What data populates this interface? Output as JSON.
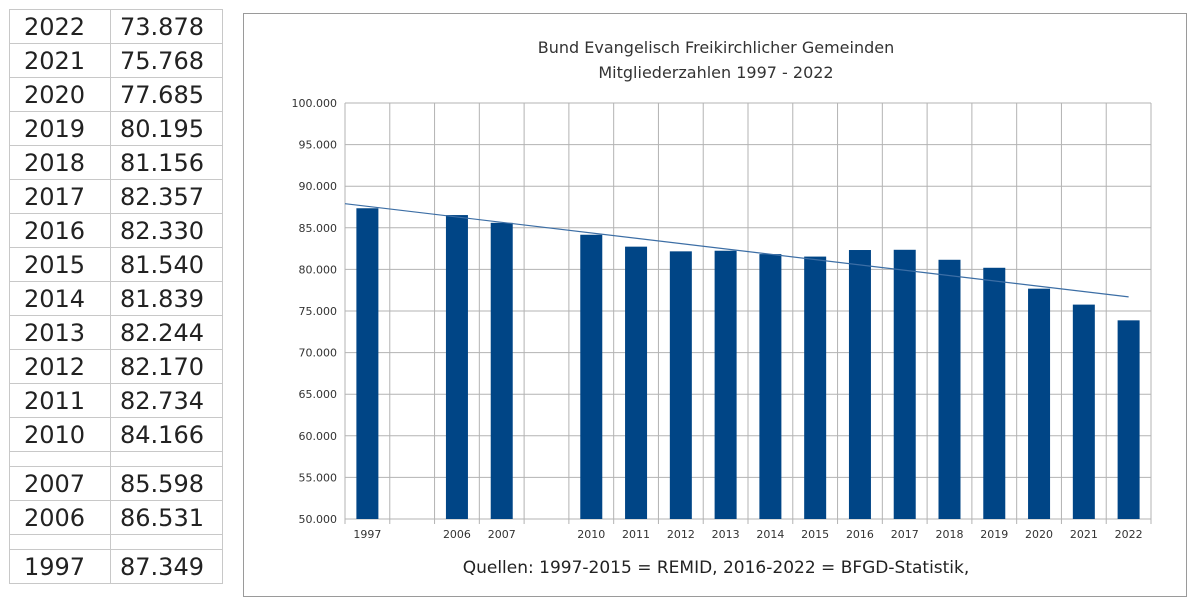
{
  "table": {
    "rows": [
      {
        "year": "2022",
        "value": "73.878"
      },
      {
        "year": "2021",
        "value": "75.768"
      },
      {
        "year": "2020",
        "value": "77.685"
      },
      {
        "year": "2019",
        "value": "80.195"
      },
      {
        "year": "2018",
        "value": "81.156"
      },
      {
        "year": "2017",
        "value": "82.357"
      },
      {
        "year": "2016",
        "value": "82.330"
      },
      {
        "year": "2015",
        "value": "81.540"
      },
      {
        "year": "2014",
        "value": "81.839"
      },
      {
        "year": "2013",
        "value": "82.244"
      },
      {
        "year": "2012",
        "value": "82.170"
      },
      {
        "year": "2011",
        "value": "82.734"
      },
      {
        "year": "2010",
        "value": "84.166"
      },
      {
        "year": "",
        "value": ""
      },
      {
        "year": "2007",
        "value": "85.598"
      },
      {
        "year": "2006",
        "value": "86.531"
      },
      {
        "year": "",
        "value": ""
      },
      {
        "year": "1997",
        "value": "87.349"
      }
    ]
  },
  "chart_data": {
    "type": "bar",
    "title": "Bund Evangelisch Freikirchlicher Gemeinden",
    "subtitle": "Mitgliederzahlen 1997 - 2022",
    "categories": [
      "1997",
      "",
      "2006",
      "2007",
      "",
      "2010",
      "2011",
      "2012",
      "2013",
      "2014",
      "2015",
      "2016",
      "2017",
      "2018",
      "2019",
      "2020",
      "2021",
      "2022"
    ],
    "values": [
      87349,
      null,
      86531,
      85598,
      null,
      84166,
      82734,
      82170,
      82244,
      81839,
      81540,
      82330,
      82357,
      81156,
      80195,
      77685,
      75768,
      73878
    ],
    "ylim": [
      50000,
      100000
    ],
    "yticks": [
      "50.000",
      "55.000",
      "60.000",
      "65.000",
      "70.000",
      "75.000",
      "80.000",
      "85.000",
      "90.000",
      "95.000",
      "100.000"
    ],
    "ytick_values": [
      50000,
      55000,
      60000,
      65000,
      70000,
      75000,
      80000,
      85000,
      90000,
      95000,
      100000
    ],
    "trendline": {
      "start": 87900,
      "end": 76700
    },
    "grid": true,
    "bar_color": "#004586",
    "trend_color": "#3c6ea5",
    "source": "Quellen: 1997-2015 = REMID, 2016-2022 = BFGD-Statistik,"
  }
}
